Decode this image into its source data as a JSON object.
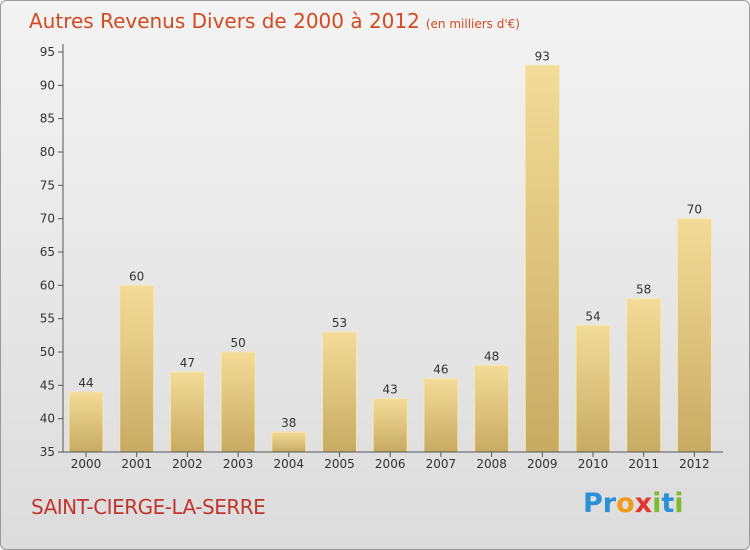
{
  "title": "Autres Revenus Divers de 2000 à 2012",
  "unit": "(en milliers d'€)",
  "place": "SAINT-CIERGE-LA-SERRE",
  "logo": {
    "letters": [
      "P",
      "r",
      "o",
      "x",
      "i",
      "t",
      "i"
    ],
    "colors": [
      "#2a8fd6",
      "#2a8fd6",
      "#f19a1b",
      "#e2362b",
      "#7dbb2a",
      "#2a8fd6",
      "#7dbb2a"
    ]
  },
  "colors": {
    "title": "#d24a1f",
    "bar_light": "#f3dc98",
    "bar_dark": "#c8ab63",
    "axis": "#555555"
  },
  "chart_data": {
    "type": "bar",
    "categories": [
      "2000",
      "2001",
      "2002",
      "2003",
      "2004",
      "2005",
      "2006",
      "2007",
      "2008",
      "2009",
      "2010",
      "2011",
      "2012"
    ],
    "values": [
      44,
      60,
      47,
      50,
      38,
      53,
      43,
      46,
      48,
      93,
      54,
      58,
      70
    ],
    "value_labels": [
      "44",
      "60",
      "47",
      "50",
      "38",
      "53",
      "43",
      "46",
      "48",
      "93",
      "54",
      "58",
      "70"
    ],
    "y_ticks": [
      "35",
      "40",
      "45",
      "50",
      "55",
      "60",
      "65",
      "70",
      "75",
      "80",
      "85",
      "90",
      "95"
    ],
    "ylim": [
      35,
      95
    ],
    "title": "Autres Revenus Divers de 2000 à 2012",
    "xlabel": "",
    "ylabel": "",
    "grid": false,
    "legend": "none"
  }
}
